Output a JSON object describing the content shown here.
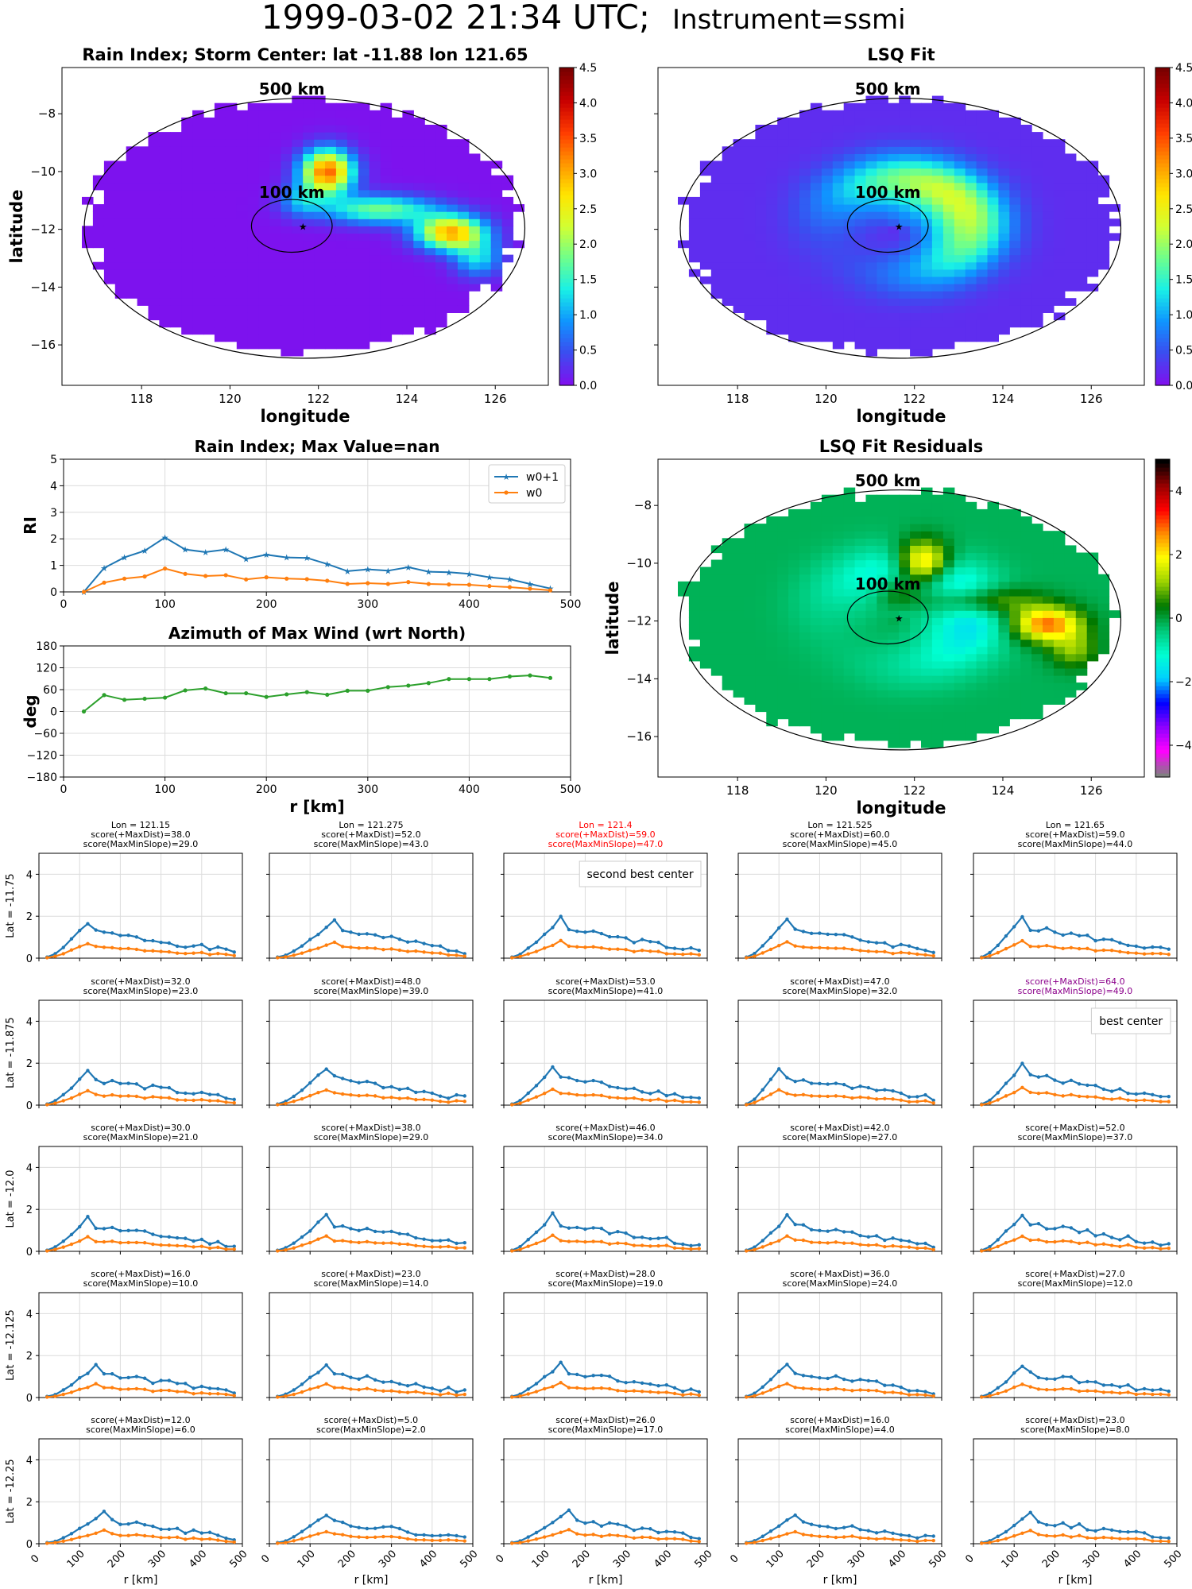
{
  "suptitle": {
    "main": "1999-03-02 21:34 UTC;",
    "sub": "Instrument=ssmi"
  },
  "colormaps": {
    "rain": [
      "#7d12ee",
      "#3a4ef0",
      "#0f96ff",
      "#19f0e6",
      "#6eff8c",
      "#d2ff32",
      "#ffe600",
      "#ff9600",
      "#ff3c00",
      "#c80000",
      "#7a0000"
    ],
    "resid": [
      "#808080",
      "#ff00ff",
      "#8c00ff",
      "#0000ff",
      "#00d0ff",
      "#00ffd2",
      "#00c878",
      "#007800",
      "#9bd200",
      "#ffff00",
      "#ff8c00",
      "#ff0000",
      "#960000",
      "#000000"
    ]
  },
  "maps": {
    "xlabel": "longitude",
    "ylabel": "latitude",
    "xticks": [
      118,
      120,
      122,
      124,
      126
    ],
    "yticks": [
      -8,
      -10,
      -12,
      -14,
      -16
    ],
    "xlim": [
      116.2,
      127.2
    ],
    "ylim": [
      -17.4,
      -6.4
    ],
    "circle_labels": {
      "outer": "500 km",
      "inner": "100 km"
    },
    "rain": {
      "title": "Rain Index; Storm Center: lat -11.88 lon 121.65",
      "cbar_ticks": [
        "0.0",
        "0.5",
        "1.0",
        "1.5",
        "2.0",
        "2.5",
        "3.0",
        "3.5",
        "4.0",
        "4.5"
      ]
    },
    "lsq": {
      "title": "LSQ Fit",
      "cbar_ticks": [
        "0.0",
        "0.5",
        "1.0",
        "1.5",
        "2.0",
        "2.5",
        "3.0",
        "3.5",
        "4.0",
        "4.5"
      ]
    },
    "resid": {
      "title": "LSQ Fit Residuals",
      "cbar_ticks": [
        "4",
        "2",
        "0",
        "−2",
        "−4"
      ]
    }
  },
  "chart_data": [
    {
      "type": "line",
      "title": "Rain Index; Max Value=nan",
      "ylabel": "RI",
      "xlim": [
        0,
        500
      ],
      "ylim": [
        0,
        5
      ],
      "xticks": [
        0,
        100,
        200,
        300,
        400,
        500
      ],
      "yticks": [
        0,
        1,
        2,
        3,
        4,
        5
      ],
      "legend": "top-right",
      "grid": true,
      "x": [
        20,
        40,
        60,
        80,
        100,
        120,
        140,
        160,
        180,
        200,
        220,
        240,
        260,
        280,
        300,
        320,
        340,
        360,
        380,
        400,
        420,
        440,
        460,
        480
      ],
      "series": [
        {
          "name": "w0+1",
          "color": "#1f77b4",
          "marker": "star",
          "values": [
            0.0,
            0.9,
            1.3,
            1.55,
            2.05,
            1.6,
            1.5,
            1.6,
            1.25,
            1.4,
            1.3,
            1.28,
            1.05,
            0.78,
            0.85,
            0.8,
            0.93,
            0.76,
            0.74,
            0.68,
            0.55,
            0.48,
            0.3,
            0.13
          ]
        },
        {
          "name": "w0",
          "color": "#ff7f0e",
          "marker": "dot",
          "values": [
            0.0,
            0.35,
            0.5,
            0.58,
            0.88,
            0.68,
            0.6,
            0.63,
            0.47,
            0.55,
            0.5,
            0.48,
            0.42,
            0.3,
            0.33,
            0.3,
            0.37,
            0.3,
            0.28,
            0.27,
            0.22,
            0.18,
            0.12,
            0.06
          ]
        }
      ]
    },
    {
      "type": "line",
      "title": "Azimuth of Max Wind (wrt North)",
      "xlabel": "r [km]",
      "ylabel": "deg",
      "xlim": [
        0,
        500
      ],
      "ylim": [
        -180,
        180
      ],
      "xticks": [
        0,
        100,
        200,
        300,
        400,
        500
      ],
      "yticks": [
        180,
        120,
        60,
        0,
        -60,
        -120,
        -180
      ],
      "grid": true,
      "x": [
        20,
        40,
        60,
        80,
        100,
        120,
        140,
        160,
        180,
        200,
        220,
        240,
        260,
        280,
        300,
        320,
        340,
        360,
        380,
        400,
        420,
        440,
        460,
        480
      ],
      "series": [
        {
          "color": "#2ca02c",
          "marker": "dot",
          "values": [
            0,
            45,
            32,
            35,
            38,
            58,
            63,
            50,
            50,
            40,
            47,
            53,
            46,
            57,
            57,
            67,
            71,
            78,
            89,
            89,
            89,
            96,
            99,
            92
          ]
        }
      ]
    },
    {
      "type": "line",
      "grid_of_small_multiples": true,
      "xlabel": "r [km]",
      "xlim": [
        0,
        500
      ],
      "ylim": [
        0,
        5
      ],
      "xticks": [
        0,
        100,
        200,
        300,
        400,
        500
      ],
      "yticks": [
        0,
        2,
        4
      ],
      "cols": [
        "121.15",
        "121.275",
        "121.4",
        "121.525",
        "121.65"
      ],
      "rows": [
        "-11.75",
        "-11.875",
        "-12.0",
        "-12.125",
        "-12.25"
      ],
      "col_label_prefix": "Lon = ",
      "row_label_prefix": "Lat = ",
      "score_label_a": "score(+MaxDist)=",
      "score_label_b": "score(MaxMinSlope)=",
      "panels": [
        [
          {
            "a": "38.0",
            "b": "29.0",
            "peak": 1.8,
            "pk": 5,
            "seed": 1
          },
          {
            "a": "52.0",
            "b": "43.0",
            "peak": 1.9,
            "pk": 7,
            "seed": 2
          },
          {
            "a": "59.0",
            "b": "47.0",
            "peak": 2.0,
            "pk": 6,
            "seed": 3,
            "highlight": "red",
            "annotation": "second best center"
          },
          {
            "a": "60.0",
            "b": "45.0",
            "peak": 2.0,
            "pk": 5,
            "seed": 4
          },
          {
            "a": "59.0",
            "b": "44.0",
            "peak": 2.1,
            "pk": 5,
            "seed": 5
          }
        ],
        [
          {
            "a": "32.0",
            "b": "23.0",
            "peak": 1.75,
            "pk": 5,
            "seed": 6
          },
          {
            "a": "48.0",
            "b": "39.0",
            "peak": 1.9,
            "pk": 6,
            "seed": 7
          },
          {
            "a": "53.0",
            "b": "41.0",
            "peak": 1.9,
            "pk": 5,
            "seed": 8
          },
          {
            "a": "47.0",
            "b": "32.0",
            "peak": 1.85,
            "pk": 4,
            "seed": 9
          },
          {
            "a": "64.0",
            "b": "49.0",
            "peak": 2.05,
            "pk": 5,
            "seed": 10,
            "highlight": "purple",
            "annotation": "best center"
          }
        ],
        [
          {
            "a": "30.0",
            "b": "21.0",
            "peak": 1.7,
            "pk": 5,
            "seed": 11
          },
          {
            "a": "38.0",
            "b": "29.0",
            "peak": 1.8,
            "pk": 6,
            "seed": 12
          },
          {
            "a": "46.0",
            "b": "34.0",
            "peak": 1.85,
            "pk": 5,
            "seed": 13
          },
          {
            "a": "42.0",
            "b": "27.0",
            "peak": 1.75,
            "pk": 5,
            "seed": 14
          },
          {
            "a": "52.0",
            "b": "37.0",
            "peak": 1.9,
            "pk": 5,
            "seed": 15
          }
        ],
        [
          {
            "a": "16.0",
            "b": "10.0",
            "peak": 1.6,
            "pk": 6,
            "seed": 16
          },
          {
            "a": "23.0",
            "b": "14.0",
            "peak": 1.65,
            "pk": 6,
            "seed": 17
          },
          {
            "a": "28.0",
            "b": "19.0",
            "peak": 1.7,
            "pk": 6,
            "seed": 18
          },
          {
            "a": "36.0",
            "b": "24.0",
            "peak": 1.7,
            "pk": 5,
            "seed": 19
          },
          {
            "a": "27.0",
            "b": "12.0",
            "peak": 1.6,
            "pk": 5,
            "seed": 20
          }
        ],
        [
          {
            "a": "12.0",
            "b": "6.0",
            "peak": 1.55,
            "pk": 7,
            "seed": 21
          },
          {
            "a": "5.0",
            "b": "2.0",
            "peak": 1.5,
            "pk": 6,
            "seed": 22
          },
          {
            "a": "26.0",
            "b": "17.0",
            "peak": 1.65,
            "pk": 7,
            "seed": 23
          },
          {
            "a": "16.0",
            "b": "4.0",
            "peak": 1.5,
            "pk": 6,
            "seed": 24
          },
          {
            "a": "23.0",
            "b": "8.0",
            "peak": 1.55,
            "pk": 6,
            "seed": 25
          }
        ]
      ]
    }
  ]
}
